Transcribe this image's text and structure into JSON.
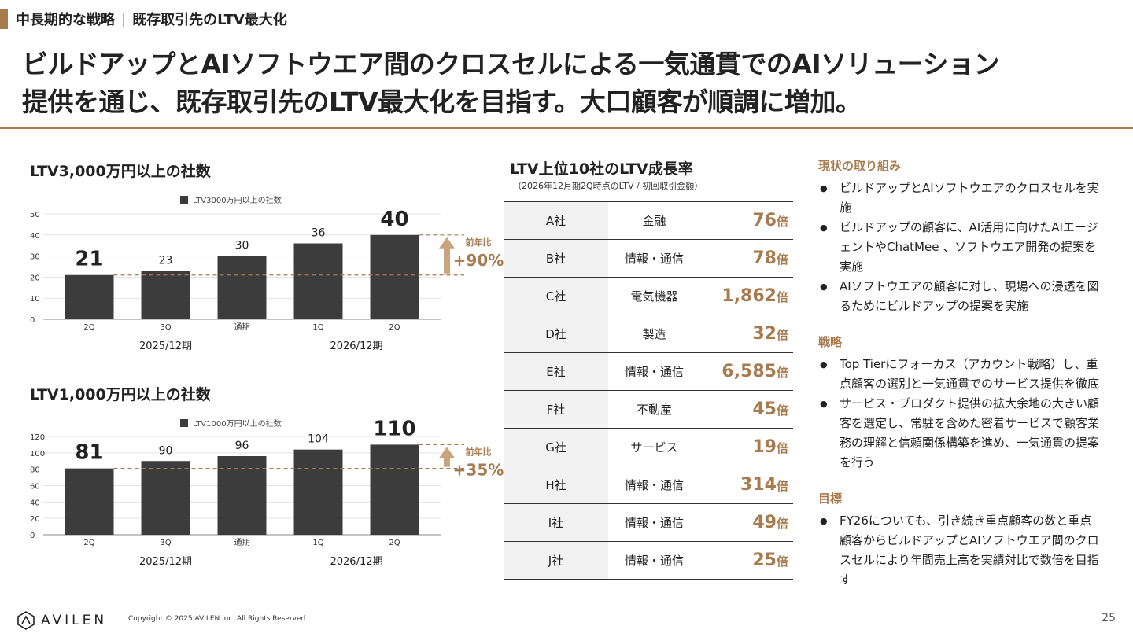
{
  "breadcrumb": {
    "section": "中長期的な戦略",
    "sep": "|",
    "topic": "既存取引先のLTV最大化"
  },
  "headline": {
    "line1": "ビルドアップとAIソフトウエア間のクロスセルによる一気通貫でのAIソリューション",
    "line2": "提供を通じ、既存取引先のLTV最大化を目指す。大口顧客が順調に増加。"
  },
  "colors": {
    "accent": "#a87b4f",
    "bar": "#3c3c3c"
  },
  "chart_titles": [
    "LTV3,000万円以上の社数",
    "LTV1,000万円以上の社数"
  ],
  "chart_data": [
    {
      "type": "bar",
      "legend": "LTV3000万円以上の社数",
      "categories": [
        "2Q",
        "3Q",
        "通期",
        "1Q",
        "2Q"
      ],
      "groups": [
        "2025/12期",
        "2026/12期"
      ],
      "values": [
        21,
        23,
        30,
        36,
        40
      ],
      "value_labels": [
        "21",
        "23",
        "30",
        "36",
        "40"
      ],
      "ylim": [
        0,
        50
      ],
      "yticks": [
        "0",
        "10",
        "20",
        "30",
        "40",
        "50"
      ],
      "growth_label": "前年比",
      "growth_value": "+90%"
    },
    {
      "type": "bar",
      "legend": "LTV1000万円以上の社数",
      "categories": [
        "2Q",
        "3Q",
        "通期",
        "1Q",
        "2Q"
      ],
      "groups": [
        "2025/12期",
        "2026/12期"
      ],
      "values": [
        81,
        90,
        96,
        104,
        110
      ],
      "value_labels": [
        "81",
        "90",
        "96",
        "104",
        "110"
      ],
      "ylim": [
        0,
        120
      ],
      "yticks": [
        "0",
        "20",
        "40",
        "60",
        "80",
        "100",
        "120"
      ],
      "growth_label": "前年比",
      "growth_value": "+35%"
    }
  ],
  "table": {
    "title": "LTV上位10社のLTV成長率",
    "subtitle": "（2026年12月期2Q時点のLTV / 初回取引金額）",
    "unit": "倍",
    "rows": [
      {
        "company": "A社",
        "industry": "金融",
        "rate": "76"
      },
      {
        "company": "B社",
        "industry": "情報・通信",
        "rate": "78"
      },
      {
        "company": "C社",
        "industry": "電気機器",
        "rate": "1,862"
      },
      {
        "company": "D社",
        "industry": "製造",
        "rate": "32"
      },
      {
        "company": "E社",
        "industry": "情報・通信",
        "rate": "6,585"
      },
      {
        "company": "F社",
        "industry": "不動産",
        "rate": "45"
      },
      {
        "company": "G社",
        "industry": "サービス",
        "rate": "19"
      },
      {
        "company": "H社",
        "industry": "情報・通信",
        "rate": "314"
      },
      {
        "company": "I社",
        "industry": "情報・通信",
        "rate": "49"
      },
      {
        "company": "J社",
        "industry": "情報・通信",
        "rate": "25"
      }
    ]
  },
  "sections": [
    {
      "heading": "現状の取り組み",
      "bullets": [
        "ビルドアップとAIソフトウエアのクロスセルを実施",
        "ビルドアップの顧客に、AI活用に向けたAIエージェントやChatMee 、ソフトウエア開発の提案を実施",
        "AIソフトウエアの顧客に対し、現場への浸透を図るためにビルドアップの提案を実施"
      ]
    },
    {
      "heading": "戦略",
      "bullets": [
        "Top Tierにフォーカス（アカウント戦略）し、重点顧客の選別と一気通貫でのサービス提供を徹底",
        "サービス・プロダクト提供の拡大余地の大きい顧客を選定し、常駐を含めた密着サービスで顧客業務の理解と信頼関係構築を進め、一気通貫の提案を行う"
      ]
    },
    {
      "heading": "目標",
      "bullets": [
        "FY26についても、引き続き重点顧客の数と重点顧客からビルドアップとAIソフトウエア間のクロスセルにより年間売上高を実績対比で数倍を目指す"
      ]
    }
  ],
  "footer": {
    "logo": "AVILEN",
    "copyright": "Copyright © 2025 AVILEN inc. All Rights Reserved",
    "page": "25"
  }
}
